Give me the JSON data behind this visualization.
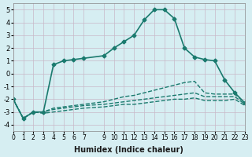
{
  "title": "",
  "xlabel": "Humidex (Indice chaleur)",
  "ylabel": "",
  "background_color": "#d6eef2",
  "grid_color": "#c8b8c8",
  "line_color": "#1a7a6e",
  "x_ticks": [
    0,
    1,
    2,
    3,
    4,
    5,
    6,
    7,
    9,
    10,
    11,
    12,
    13,
    14,
    15,
    16,
    17,
    18,
    19,
    20,
    21,
    22,
    23
  ],
  "xlim": [
    0,
    23
  ],
  "ylim": [
    -4.5,
    5.5
  ],
  "y_ticks": [
    -4,
    -3,
    -2,
    -1,
    0,
    1,
    2,
    3,
    4,
    5
  ],
  "series": [
    {
      "x": [
        0,
        1,
        2,
        3,
        4,
        5,
        6,
        7,
        9,
        10,
        11,
        12,
        13,
        14,
        15,
        16,
        17,
        18,
        19,
        20,
        21,
        22,
        23
      ],
      "y": [
        -2.0,
        -3.5,
        -3.0,
        -3.0,
        0.7,
        1.0,
        1.1,
        1.2,
        1.4,
        2.0,
        2.5,
        3.0,
        4.2,
        5.0,
        5.0,
        4.3,
        2.0,
        1.3,
        1.1,
        1.0,
        -0.5,
        -1.5,
        -2.3
      ],
      "marker": "D",
      "markersize": 2.5,
      "linewidth": 1.2,
      "linestyle": "-"
    },
    {
      "x": [
        0,
        1,
        2,
        3,
        4,
        5,
        6,
        7,
        9,
        10,
        11,
        12,
        13,
        14,
        15,
        16,
        17,
        18,
        19,
        20,
        21,
        22,
        23
      ],
      "y": [
        -2.0,
        -3.5,
        -3.0,
        -3.0,
        -2.7,
        -2.6,
        -2.5,
        -2.4,
        -2.2,
        -2.0,
        -1.8,
        -1.7,
        -1.5,
        -1.3,
        -1.1,
        -0.9,
        -0.7,
        -0.6,
        -1.5,
        -1.6,
        -1.6,
        -1.6,
        -2.3
      ],
      "marker": null,
      "markersize": 0,
      "linewidth": 1.0,
      "linestyle": "--"
    },
    {
      "x": [
        0,
        1,
        2,
        3,
        4,
        5,
        6,
        7,
        9,
        10,
        11,
        12,
        13,
        14,
        15,
        16,
        17,
        18,
        19,
        20,
        21,
        22,
        23
      ],
      "y": [
        -2.0,
        -3.5,
        -3.0,
        -3.0,
        -2.8,
        -2.7,
        -2.6,
        -2.5,
        -2.4,
        -2.3,
        -2.2,
        -2.1,
        -2.0,
        -1.9,
        -1.8,
        -1.7,
        -1.6,
        -1.5,
        -1.8,
        -1.8,
        -1.8,
        -1.8,
        -2.4
      ],
      "marker": null,
      "markersize": 0,
      "linewidth": 1.0,
      "linestyle": "--"
    },
    {
      "x": [
        0,
        1,
        2,
        3,
        4,
        5,
        6,
        7,
        9,
        10,
        11,
        12,
        13,
        14,
        15,
        16,
        17,
        18,
        19,
        20,
        21,
        22,
        23
      ],
      "y": [
        -2.0,
        -3.5,
        -3.0,
        -3.1,
        -3.0,
        -2.9,
        -2.8,
        -2.7,
        -2.6,
        -2.5,
        -2.4,
        -2.4,
        -2.3,
        -2.2,
        -2.1,
        -2.0,
        -2.0,
        -1.9,
        -2.1,
        -2.1,
        -2.1,
        -2.0,
        -2.5
      ],
      "marker": null,
      "markersize": 0,
      "linewidth": 1.0,
      "linestyle": "--"
    }
  ]
}
